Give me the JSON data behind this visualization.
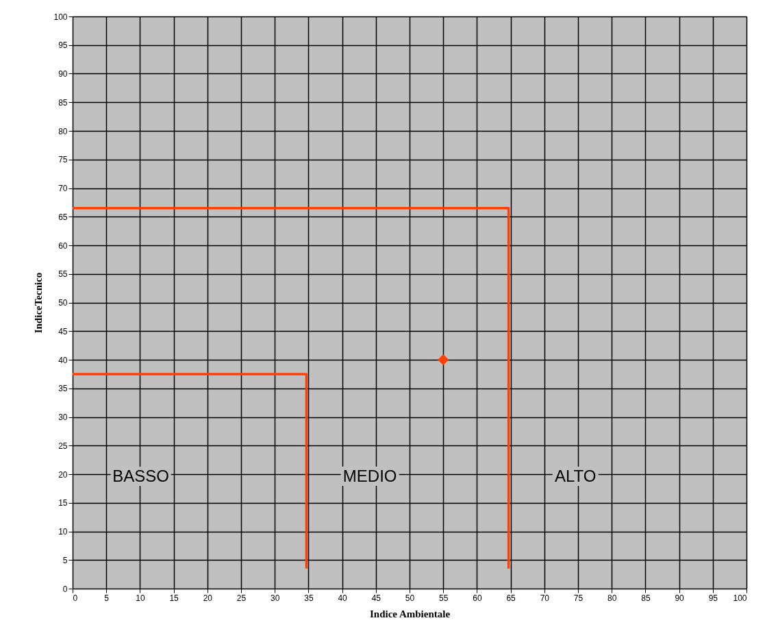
{
  "chart_data": {
    "type": "scatter",
    "xlabel": "Indice Ambientale",
    "ylabel": "IndiceTecnico",
    "xlim": [
      0,
      100
    ],
    "ylim": [
      0,
      100
    ],
    "xticks": [
      0,
      5,
      10,
      15,
      20,
      25,
      30,
      35,
      40,
      45,
      50,
      55,
      60,
      65,
      70,
      75,
      80,
      85,
      90,
      95,
      100
    ],
    "yticks": [
      0,
      5,
      10,
      15,
      20,
      25,
      30,
      35,
      40,
      45,
      50,
      55,
      60,
      65,
      70,
      75,
      80,
      85,
      90,
      95,
      100
    ],
    "grid": true,
    "series": [
      {
        "type": "line",
        "color": "#ff4000",
        "x": [
          0,
          34.7,
          34.7
        ],
        "values": [
          37.5,
          37.5,
          3.5
        ],
        "marker": "none"
      },
      {
        "type": "line",
        "color": "#ff4000",
        "x": [
          0,
          64.7,
          64.7
        ],
        "values": [
          66.5,
          66.5,
          3.5
        ],
        "marker": "none"
      },
      {
        "color": "#ff4000",
        "x": [
          55
        ],
        "values": [
          40
        ],
        "marker": "diamond"
      }
    ],
    "annotations": [
      "BASSO",
      "MEDIO",
      "ALTO"
    ]
  }
}
